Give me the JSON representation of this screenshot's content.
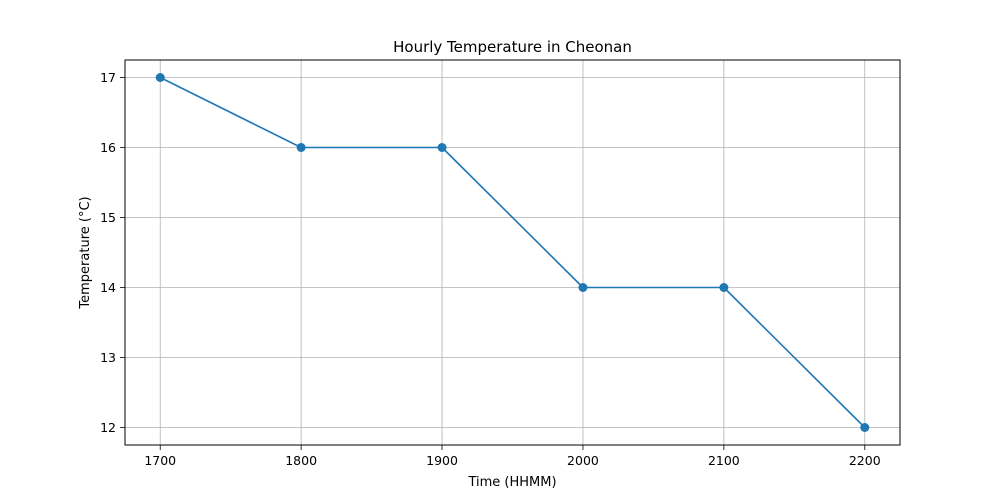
{
  "chart_data": {
    "type": "line",
    "title": "Hourly Temperature in Cheonan",
    "xlabel": "Time (HHMM)",
    "ylabel": "Temperature (°C)",
    "x": [
      1700,
      1800,
      1900,
      2000,
      2100,
      2200
    ],
    "xticks": [
      "1700",
      "1800",
      "1900",
      "2000",
      "2100",
      "2200"
    ],
    "yticks": [
      "12",
      "13",
      "14",
      "15",
      "16",
      "17"
    ],
    "xlim": [
      1675,
      2225
    ],
    "ylim": [
      11.75,
      17.25
    ],
    "grid": true,
    "series": [
      {
        "values": [
          17,
          16,
          16,
          14,
          14,
          12
        ],
        "color": "#1f77b4",
        "marker": "circle"
      }
    ]
  }
}
